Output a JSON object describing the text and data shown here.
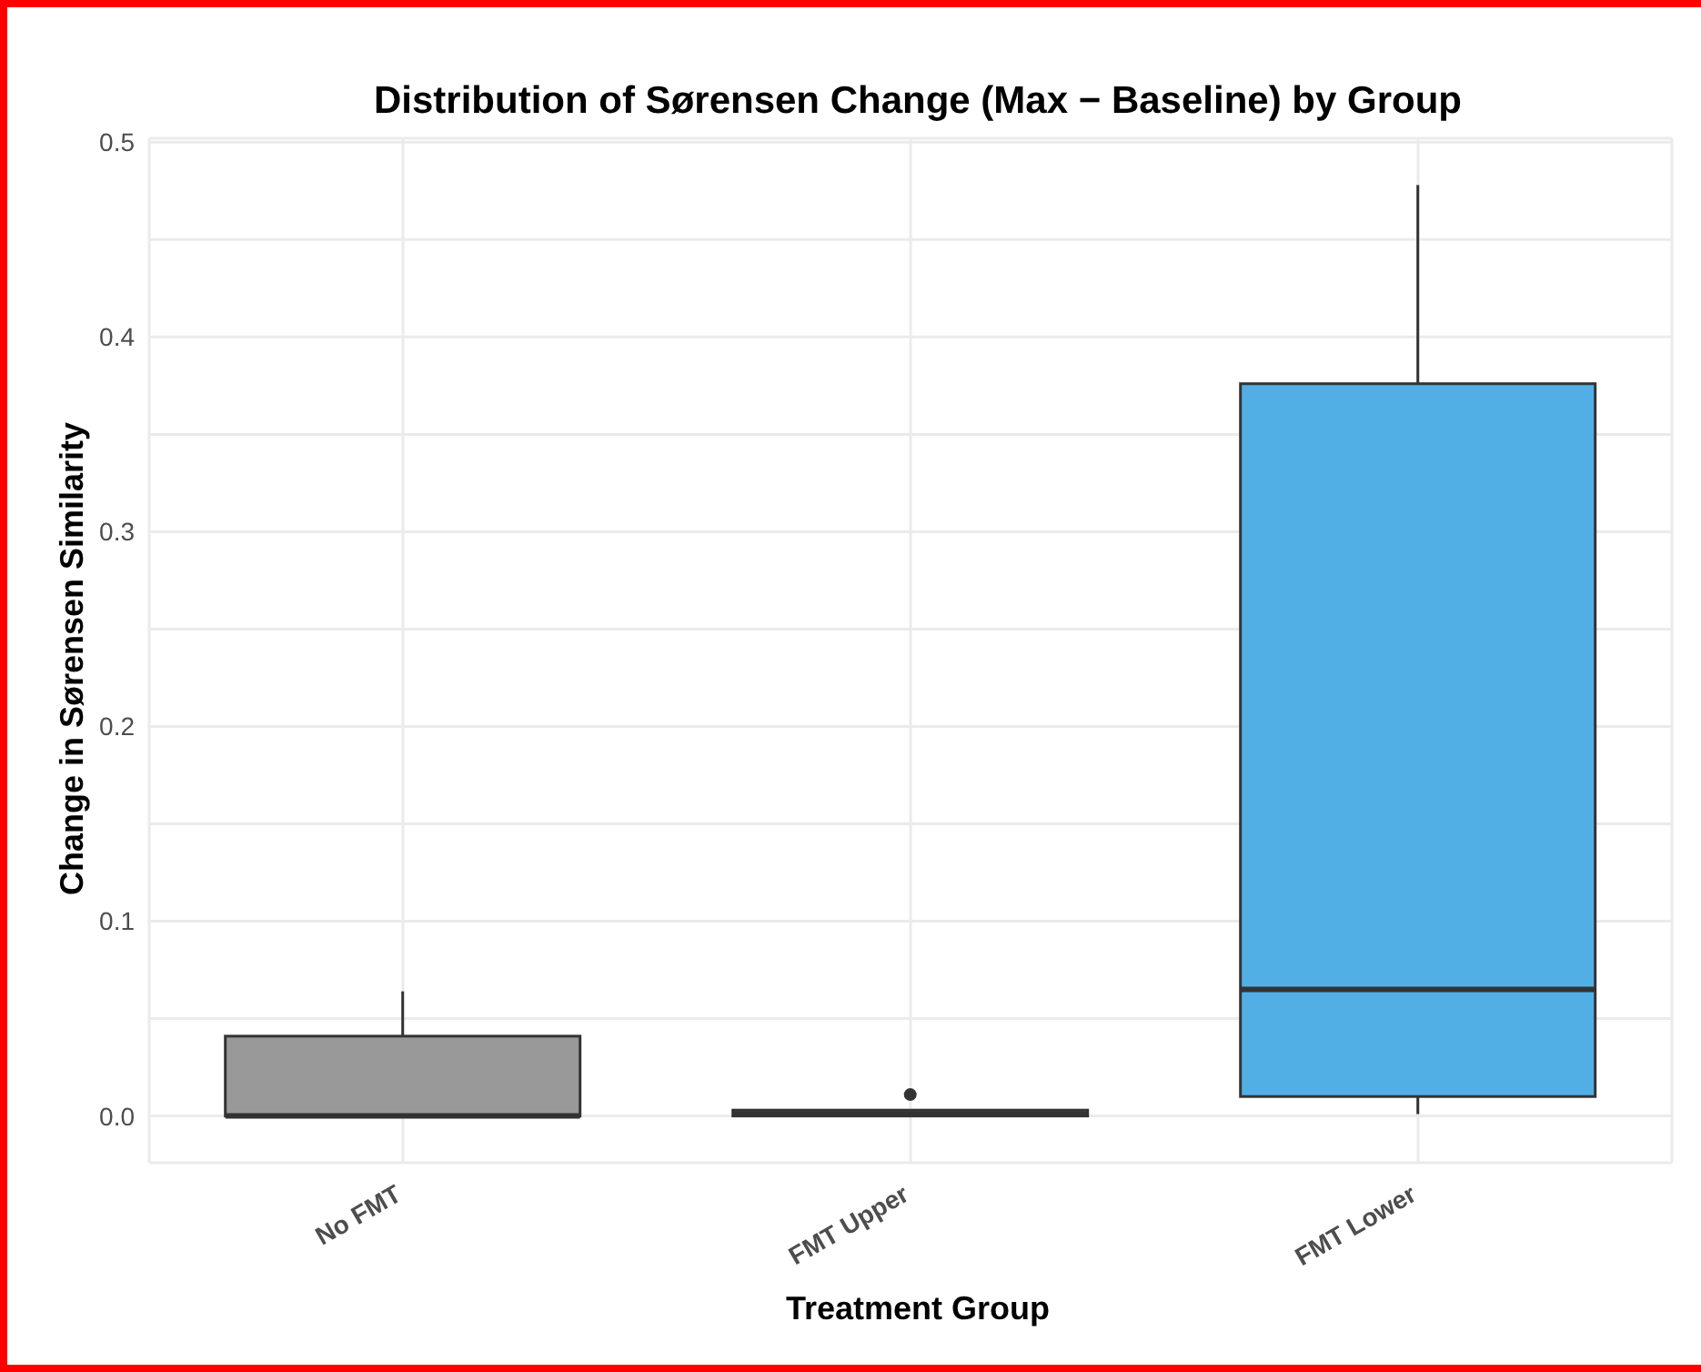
{
  "chart_data": {
    "type": "box",
    "title": "Distribution of Sørensen Change (Max − Baseline) by Group",
    "xlabel": "Treatment Group",
    "ylabel": "Change in Sørensen Similarity",
    "categories": [
      "No FMT",
      "FMT Upper",
      "FMT Lower"
    ],
    "boxes": [
      {
        "low": 0,
        "q1": 0,
        "median": 0,
        "q3": 0.041,
        "high": 0.064
      },
      {
        "low": 0,
        "q1": 0,
        "median": 0.001,
        "q3": 0.003,
        "high": 0.003,
        "outliers": [
          0.011
        ]
      },
      {
        "low": 0.001,
        "q1": 0.01,
        "median": 0.065,
        "q3": 0.376,
        "high": 0.478
      }
    ],
    "colors": [
      "#999999",
      "#8c6d3f",
      "#52afe6"
    ],
    "ylim": [
      -0.024,
      0.502
    ],
    "yticks": [
      {
        "value": 0,
        "label": "0.0"
      },
      {
        "value": 0.05,
        "label": null
      },
      {
        "value": 0.1,
        "label": "0.1"
      },
      {
        "value": 0.15,
        "label": null
      },
      {
        "value": 0.2,
        "label": "0.2"
      },
      {
        "value": 0.25,
        "label": null
      },
      {
        "value": 0.3,
        "label": "0.3"
      },
      {
        "value": 0.35,
        "label": null
      },
      {
        "value": 0.4,
        "label": "0.4"
      },
      {
        "value": 0.45,
        "label": null
      },
      {
        "value": 0.5,
        "label": "0.5"
      }
    ],
    "grid": true
  }
}
